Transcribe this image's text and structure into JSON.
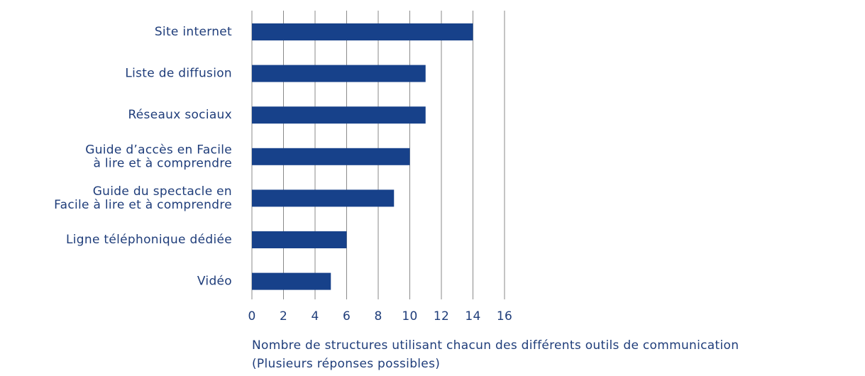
{
  "chart_data": {
    "type": "barh",
    "categories": [
      "Site internet",
      "Liste de diffusion",
      "Réseaux sociaux",
      "Guide d’accès en Facile\nà lire et à comprendre",
      "Guide du spectacle en\nFacile à lire et à comprendre",
      "Ligne téléphonique dédiée",
      "Vidéo"
    ],
    "values": [
      14,
      11,
      11,
      10,
      9,
      6,
      5
    ],
    "color": "#17418a",
    "xlim": [
      0,
      16
    ],
    "xticks": [
      0,
      2,
      4,
      6,
      8,
      10,
      12,
      14,
      16
    ],
    "grid": true,
    "xlabel": "Nombre de structures utilisant chacun des différents outils de communication\n(Plusieurs réponses possibles)"
  }
}
